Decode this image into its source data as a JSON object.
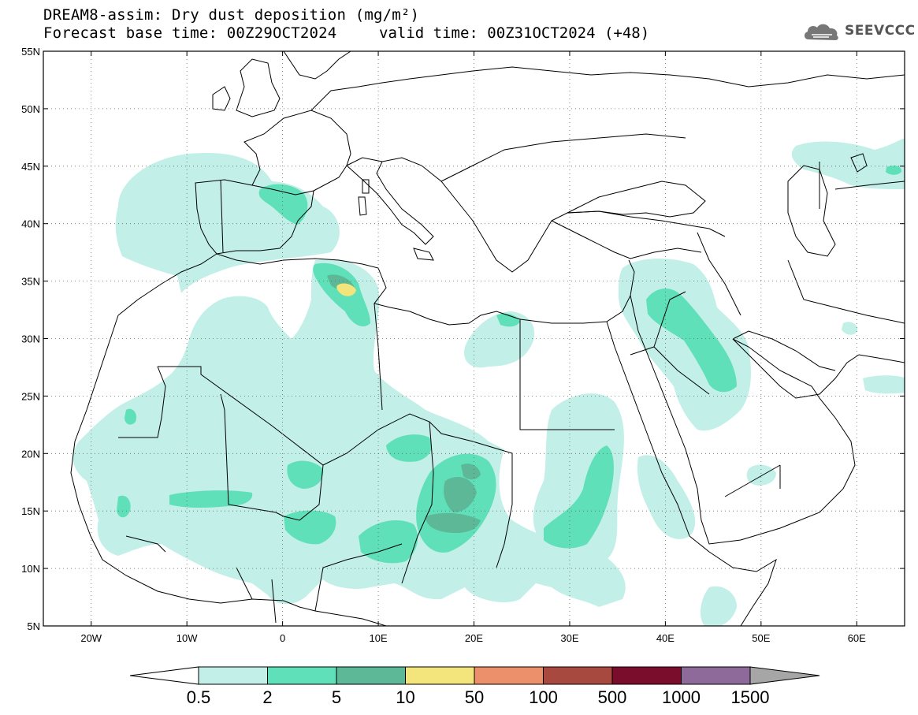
{
  "title": {
    "line1": "DREAM8-assim: Dry dust deposition (mg/m²)",
    "line2": "Forecast base time: 00Z29OCT2024",
    "valid": "valid time: 00Z31OCT2024 (+48)"
  },
  "logo": {
    "text": "SEEVCCC",
    "icon": "cloud-icon"
  },
  "map": {
    "lon_range": [
      -25,
      65
    ],
    "lat_range": [
      5,
      55
    ],
    "lat_ticks": [
      {
        "v": 55,
        "label": "55N"
      },
      {
        "v": 50,
        "label": "50N"
      },
      {
        "v": 45,
        "label": "45N"
      },
      {
        "v": 40,
        "label": "40N"
      },
      {
        "v": 35,
        "label": "35N"
      },
      {
        "v": 30,
        "label": "30N"
      },
      {
        "v": 25,
        "label": "25N"
      },
      {
        "v": 20,
        "label": "20N"
      },
      {
        "v": 15,
        "label": "15N"
      },
      {
        "v": 10,
        "label": "10N"
      },
      {
        "v": 5,
        "label": "5N"
      }
    ],
    "lon_ticks": [
      {
        "v": -20,
        "label": "20W"
      },
      {
        "v": -10,
        "label": "10W"
      },
      {
        "v": 0,
        "label": "0"
      },
      {
        "v": 10,
        "label": "10E"
      },
      {
        "v": 20,
        "label": "20E"
      },
      {
        "v": 30,
        "label": "30E"
      },
      {
        "v": 40,
        "label": "40E"
      },
      {
        "v": 50,
        "label": "50E"
      },
      {
        "v": 60,
        "label": "60E"
      }
    ],
    "gridlines": "dotted"
  },
  "colorbar": {
    "colors": [
      "#c2efe8",
      "#5fe0b8",
      "#5cb896",
      "#f3e47b",
      "#ec8f6b",
      "#a8493f",
      "#7a0c2c",
      "#8e6a9a",
      "#a6a6a6"
    ],
    "labels": [
      "0.5",
      "2",
      "5",
      "10",
      "50",
      "100",
      "500",
      "1000",
      "1500"
    ],
    "low_end_color": "#ffffff",
    "high_end_color": "#a6a6a6"
  }
}
